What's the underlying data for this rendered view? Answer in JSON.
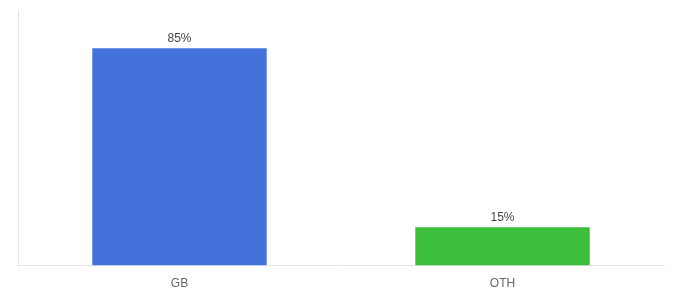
{
  "chart_data": {
    "type": "bar",
    "categories": [
      "GB",
      "OTH"
    ],
    "values": [
      85,
      15
    ],
    "value_labels": [
      "85%",
      "15%"
    ],
    "colors": [
      "#4472db",
      "#3dbe3d"
    ],
    "ylim": [
      0,
      100
    ],
    "grid": false,
    "data_labels": true,
    "tick_labels": "x"
  }
}
